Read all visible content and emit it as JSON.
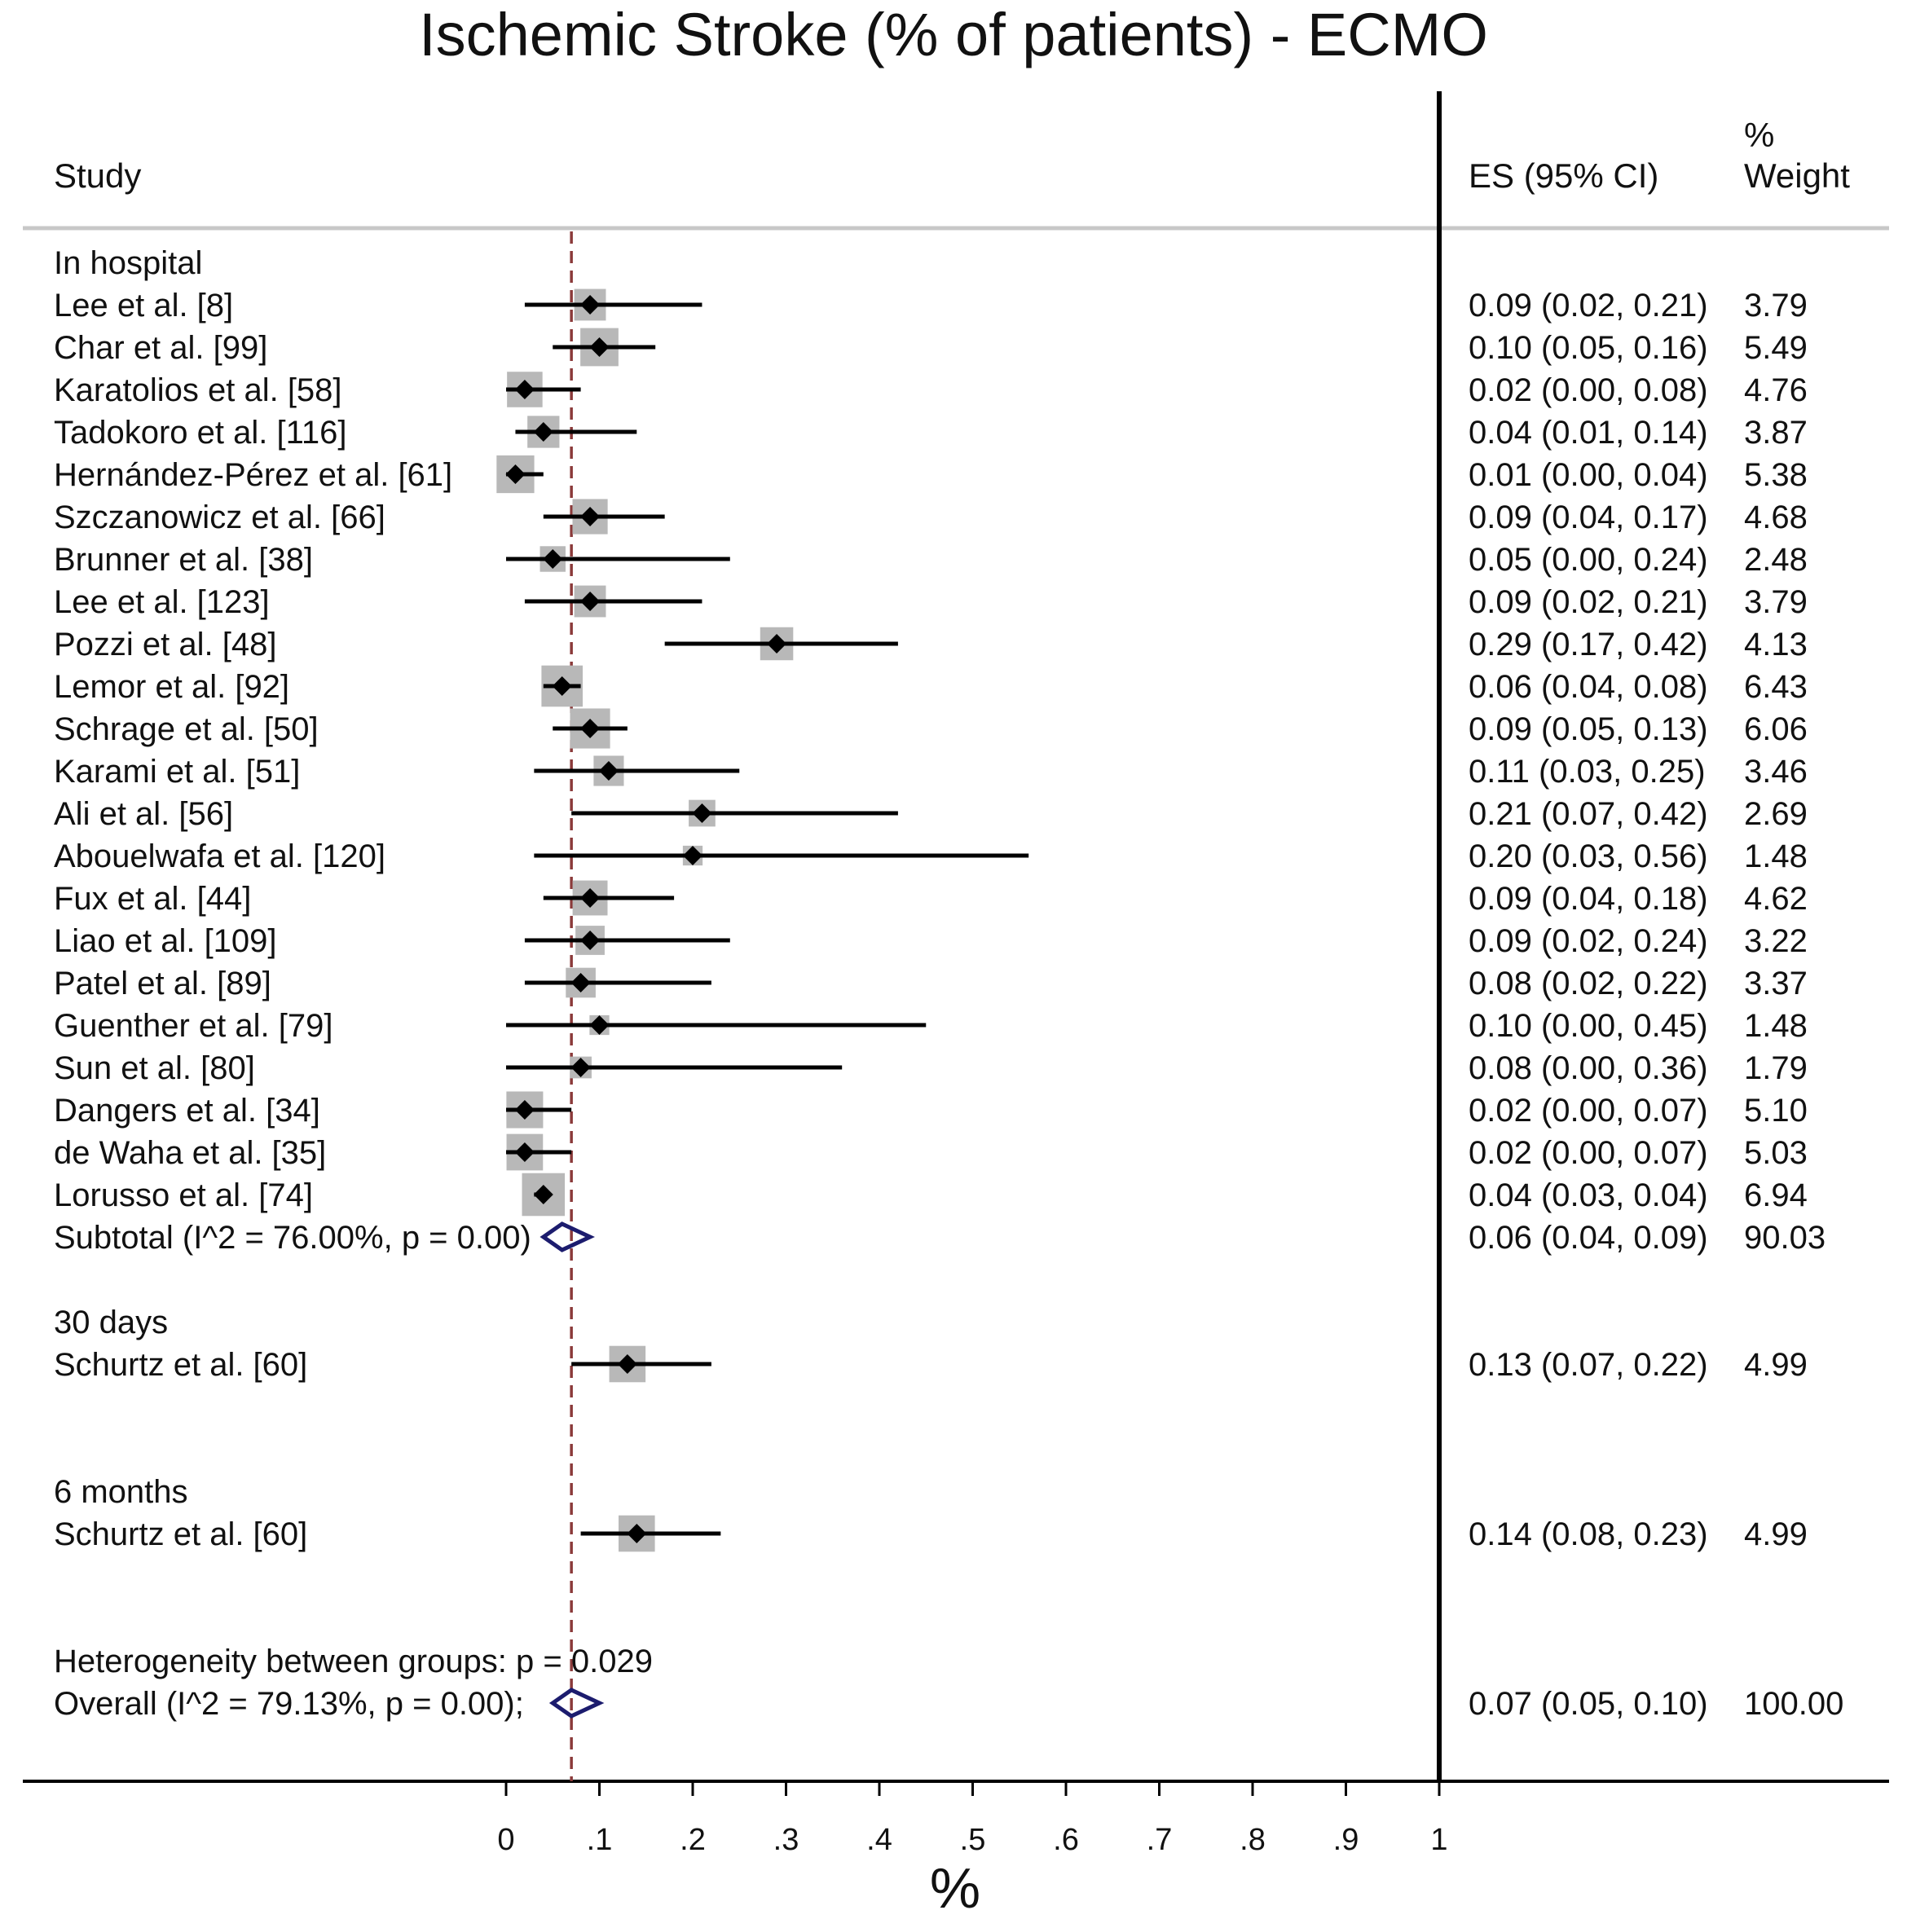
{
  "chart_data": {
    "type": "forest",
    "title": "Ischemic Stroke (% of patients) - ECMO",
    "headers": {
      "study": "Study",
      "es": "ES (95% CI)",
      "weight_line1": "%",
      "weight_line2": "Weight"
    },
    "xlabel": "%",
    "xlim": [
      0,
      1
    ],
    "x_ticks": [
      "0",
      ".1",
      ".2",
      ".3",
      ".4",
      ".5",
      ".6",
      ".7",
      ".8",
      ".9",
      "1"
    ],
    "overall_reference": 0.07,
    "groups": [
      {
        "label": "In hospital",
        "studies": [
          {
            "name": "Lee et al. [8]",
            "es": 0.09,
            "lo": 0.02,
            "hi": 0.21,
            "ci_text": "0.09 (0.02, 0.21)",
            "weight": "3.79"
          },
          {
            "name": "Char et al. [99]",
            "es": 0.1,
            "lo": 0.05,
            "hi": 0.16,
            "ci_text": "0.10 (0.05, 0.16)",
            "weight": "5.49"
          },
          {
            "name": "Karatolios et al. [58]",
            "es": 0.02,
            "lo": 0.0,
            "hi": 0.08,
            "ci_text": "0.02 (0.00, 0.08)",
            "weight": "4.76"
          },
          {
            "name": "Tadokoro et al. [116]",
            "es": 0.04,
            "lo": 0.01,
            "hi": 0.14,
            "ci_text": "0.04 (0.01, 0.14)",
            "weight": "3.87"
          },
          {
            "name": "Hernández-Pérez et al. [61]",
            "es": 0.01,
            "lo": 0.0,
            "hi": 0.04,
            "ci_text": "0.01 (0.00, 0.04)",
            "weight": "5.38"
          },
          {
            "name": "Szczanowicz et al. [66]",
            "es": 0.09,
            "lo": 0.04,
            "hi": 0.17,
            "ci_text": "0.09 (0.04, 0.17)",
            "weight": "4.68"
          },
          {
            "name": "Brunner et al. [38]",
            "es": 0.05,
            "lo": 0.0,
            "hi": 0.24,
            "ci_text": "0.05 (0.00, 0.24)",
            "weight": "2.48"
          },
          {
            "name": "Lee et al. [123]",
            "es": 0.09,
            "lo": 0.02,
            "hi": 0.21,
            "ci_text": "0.09 (0.02, 0.21)",
            "weight": "3.79"
          },
          {
            "name": "Pozzi et al. [48]",
            "es": 0.29,
            "lo": 0.17,
            "hi": 0.42,
            "ci_text": "0.29 (0.17, 0.42)",
            "weight": "4.13"
          },
          {
            "name": "Lemor et al. [92]",
            "es": 0.06,
            "lo": 0.04,
            "hi": 0.08,
            "ci_text": "0.06 (0.04, 0.08)",
            "weight": "6.43"
          },
          {
            "name": "Schrage et al. [50]",
            "es": 0.09,
            "lo": 0.05,
            "hi": 0.13,
            "ci_text": "0.09 (0.05, 0.13)",
            "weight": "6.06"
          },
          {
            "name": "Karami et al. [51]",
            "es": 0.11,
            "lo": 0.03,
            "hi": 0.25,
            "ci_text": "0.11 (0.03, 0.25)",
            "weight": "3.46"
          },
          {
            "name": "Ali et al. [56]",
            "es": 0.21,
            "lo": 0.07,
            "hi": 0.42,
            "ci_text": "0.21 (0.07, 0.42)",
            "weight": "2.69"
          },
          {
            "name": "Abouelwafa et al. [120]",
            "es": 0.2,
            "lo": 0.03,
            "hi": 0.56,
            "ci_text": "0.20 (0.03, 0.56)",
            "weight": "1.48"
          },
          {
            "name": "Fux et al. [44]",
            "es": 0.09,
            "lo": 0.04,
            "hi": 0.18,
            "ci_text": "0.09 (0.04, 0.18)",
            "weight": "4.62"
          },
          {
            "name": "Liao et al. [109]",
            "es": 0.09,
            "lo": 0.02,
            "hi": 0.24,
            "ci_text": "0.09 (0.02, 0.24)",
            "weight": "3.22"
          },
          {
            "name": "Patel et al. [89]",
            "es": 0.08,
            "lo": 0.02,
            "hi": 0.22,
            "ci_text": "0.08 (0.02, 0.22)",
            "weight": "3.37"
          },
          {
            "name": "Guenther et al. [79]",
            "es": 0.1,
            "lo": 0.0,
            "hi": 0.45,
            "ci_text": "0.10 (0.00, 0.45)",
            "weight": "1.48"
          },
          {
            "name": "Sun et al. [80]",
            "es": 0.08,
            "lo": 0.0,
            "hi": 0.36,
            "ci_text": "0.08 (0.00, 0.36)",
            "weight": "1.79"
          },
          {
            "name": "Dangers et al. [34]",
            "es": 0.02,
            "lo": 0.0,
            "hi": 0.07,
            "ci_text": "0.02 (0.00, 0.07)",
            "weight": "5.10"
          },
          {
            "name": "de Waha et al. [35]",
            "es": 0.02,
            "lo": 0.0,
            "hi": 0.07,
            "ci_text": "0.02 (0.00, 0.07)",
            "weight": "5.03"
          },
          {
            "name": "Lorusso et al. [74]",
            "es": 0.04,
            "lo": 0.03,
            "hi": 0.04,
            "ci_text": "0.04 (0.03, 0.04)",
            "weight": "6.94"
          }
        ],
        "subtotal": {
          "label": "Subtotal  (I^2 = 76.00%, p = 0.00)",
          "es": 0.06,
          "lo": 0.04,
          "hi": 0.09,
          "ci_text": "0.06 (0.04, 0.09)",
          "weight": "90.03"
        }
      },
      {
        "label": "30 days",
        "studies": [
          {
            "name": "Schurtz et al. [60]",
            "es": 0.13,
            "lo": 0.07,
            "hi": 0.22,
            "ci_text": "0.13 (0.07, 0.22)",
            "weight": "4.99"
          }
        ]
      },
      {
        "label": "6 months",
        "studies": [
          {
            "name": "Schurtz et al. [60]",
            "es": 0.14,
            "lo": 0.08,
            "hi": 0.23,
            "ci_text": "0.14 (0.08, 0.23)",
            "weight": "4.99"
          }
        ]
      }
    ],
    "heterogeneity": "Heterogeneity between groups: p = 0.029",
    "overall": {
      "label": "Overall  (I^2 = 79.13%, p = 0.00);",
      "es": 0.07,
      "lo": 0.05,
      "hi": 0.1,
      "ci_text": "0.07 (0.05, 0.10)",
      "weight": "100.00"
    },
    "colors": {
      "text": "#111111",
      "line": "#000000",
      "box": "#b8b8b8",
      "diamond": "#1c1c6e",
      "reference": "#8b3a3a",
      "header_rule": "#c8c8c8"
    }
  }
}
